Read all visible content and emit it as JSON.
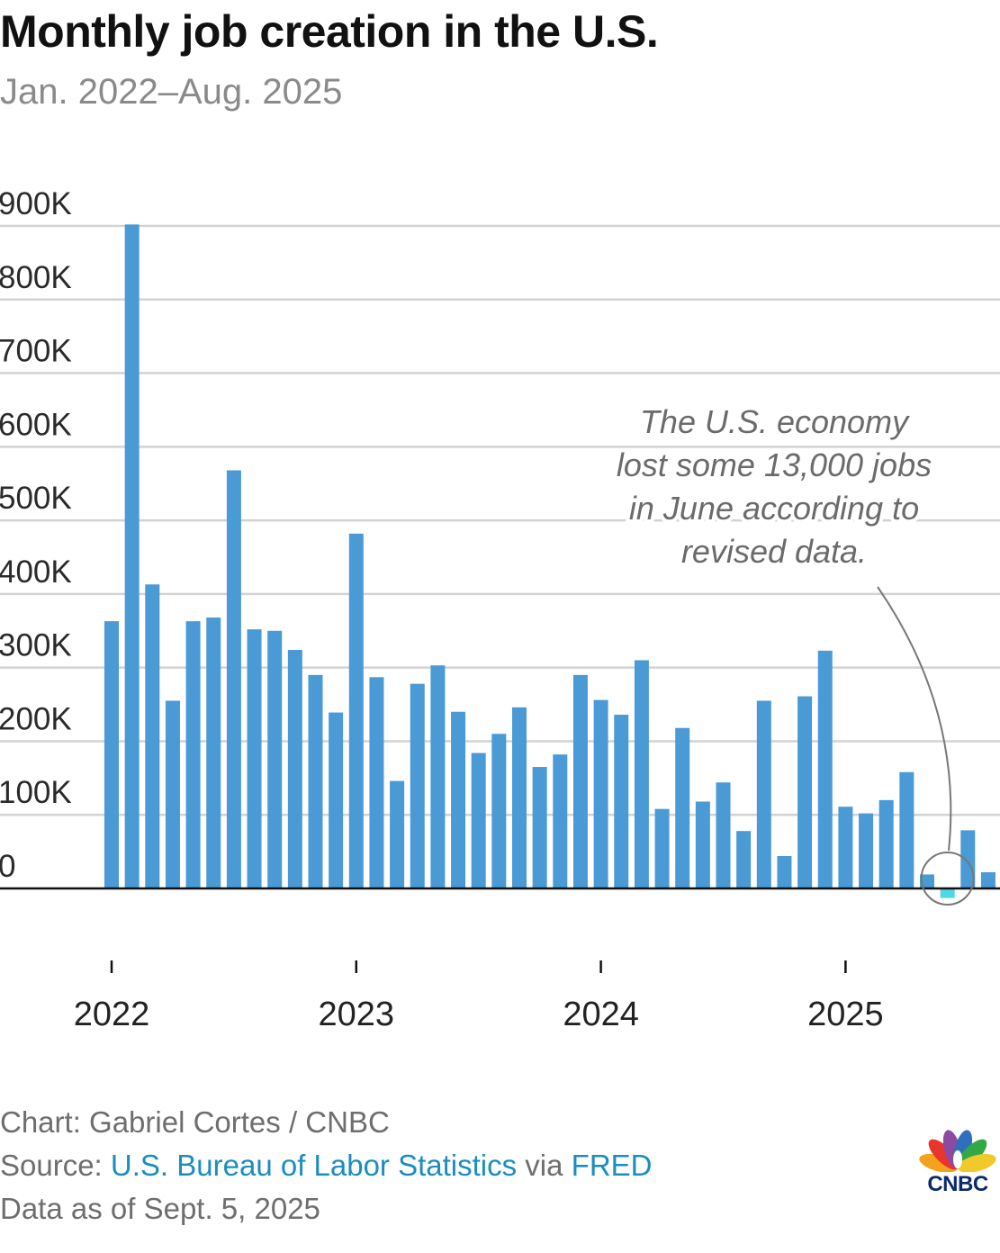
{
  "header": {
    "title": "Monthly job creation in the U.S.",
    "subtitle": "Jan. 2022–Aug. 2025"
  },
  "chart_data": {
    "type": "bar",
    "title": "Monthly job creation in the U.S.",
    "subtitle": "Jan. 2022–Aug. 2025",
    "xlabel": "",
    "ylabel": "",
    "ylim": [
      0,
      900000
    ],
    "y_ticks": [
      {
        "value": 0,
        "label": "0"
      },
      {
        "value": 100000,
        "label": "100K"
      },
      {
        "value": 200000,
        "label": "200K"
      },
      {
        "value": 300000,
        "label": "300K"
      },
      {
        "value": 400000,
        "label": "400K"
      },
      {
        "value": 500000,
        "label": "500K"
      },
      {
        "value": 600000,
        "label": "600K"
      },
      {
        "value": 700000,
        "label": "700K"
      },
      {
        "value": 800000,
        "label": "800K"
      },
      {
        "value": 900000,
        "label": "900K"
      }
    ],
    "x_ticks": [
      "2022",
      "2023",
      "2024",
      "2025"
    ],
    "grid": true,
    "categories": [
      "Jan 2022",
      "Feb 2022",
      "Mar 2022",
      "Apr 2022",
      "May 2022",
      "Jun 2022",
      "Jul 2022",
      "Aug 2022",
      "Sep 2022",
      "Oct 2022",
      "Nov 2022",
      "Dec 2022",
      "Jan 2023",
      "Feb 2023",
      "Mar 2023",
      "Apr 2023",
      "May 2023",
      "Jun 2023",
      "Jul 2023",
      "Aug 2023",
      "Sep 2023",
      "Oct 2023",
      "Nov 2023",
      "Dec 2023",
      "Jan 2024",
      "Feb 2024",
      "Mar 2024",
      "Apr 2024",
      "May 2024",
      "Jun 2024",
      "Jul 2024",
      "Aug 2024",
      "Sep 2024",
      "Oct 2024",
      "Nov 2024",
      "Dec 2024",
      "Jan 2025",
      "Feb 2025",
      "Mar 2025",
      "Apr 2025",
      "May 2025",
      "Jun 2025",
      "Jul 2025",
      "Aug 2025"
    ],
    "values": [
      363000,
      902000,
      413000,
      255000,
      363000,
      368000,
      568000,
      352000,
      350000,
      324000,
      290000,
      239000,
      482000,
      287000,
      146000,
      278000,
      303000,
      240000,
      184000,
      210000,
      246000,
      165000,
      182000,
      290000,
      256000,
      236000,
      310000,
      108000,
      218000,
      118000,
      144000,
      78000,
      255000,
      44000,
      261000,
      323000,
      111000,
      102000,
      120000,
      158000,
      19000,
      -13000,
      79000,
      22000
    ],
    "highlight_index": 41,
    "colors": {
      "bar": "#4a9ad6",
      "highlight": "#4fd8e8",
      "grid": "#d3d3d3",
      "baseline": "#111111"
    },
    "annotation": {
      "lines": [
        "The U.S. economy",
        "lost some 13,000 jobs",
        "in June according to",
        "revised data."
      ]
    }
  },
  "footer": {
    "credit": "Chart: Gabriel Cortes / CNBC",
    "source_prefix": "Source: ",
    "source_bls": "U.S. Bureau of Labor Statistics",
    "source_via": " via ",
    "source_fred": "FRED",
    "data_as_of": "Data as of Sept. 5, 2025"
  },
  "logo": {
    "text": "CNBC",
    "icon": "cnbc-peacock-icon"
  }
}
